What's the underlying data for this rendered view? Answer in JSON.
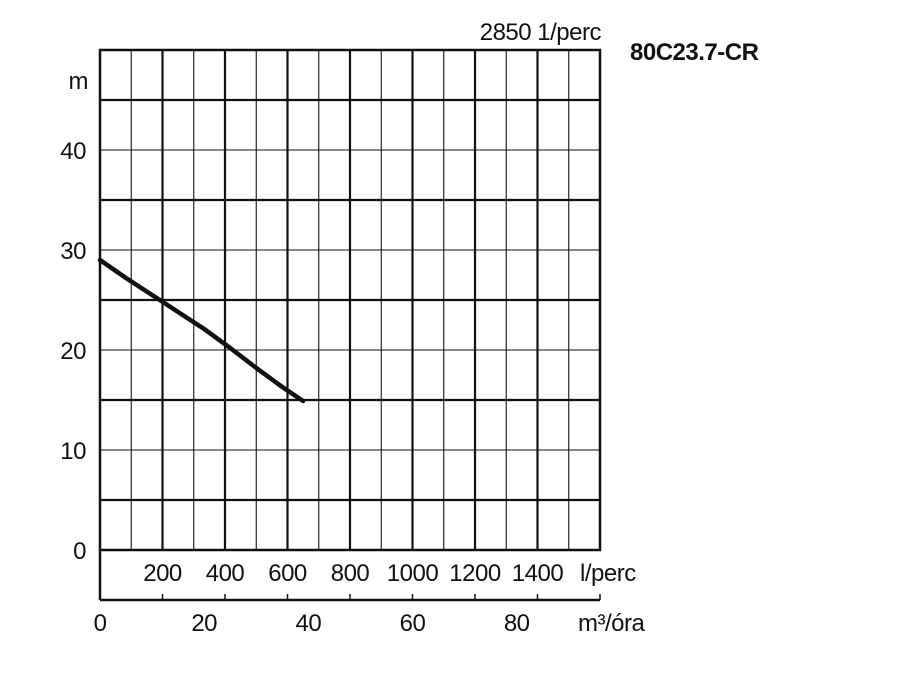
{
  "chart_data": {
    "type": "line",
    "title": "80C23.7-CR",
    "speed_label": "2850 1/perc",
    "ylabel": "m",
    "ylim": [
      0,
      50
    ],
    "y_ticks": [
      "0",
      "10",
      "20",
      "30",
      "40"
    ],
    "x_primary_unit": "m³/óra",
    "x_primary_ticks": [
      "0",
      "20",
      "40",
      "60",
      "80"
    ],
    "xlim": [
      0,
      96
    ],
    "x_secondary_unit": "l/perc",
    "x_secondary_ticks": [
      "200",
      "400",
      "600",
      "800",
      "1000",
      "1200",
      "1400"
    ],
    "grid": true,
    "series": [
      {
        "x": [
          0,
          5,
          10,
          15,
          20,
          25,
          30,
          35,
          39
        ],
        "values": [
          29,
          27.2,
          25.5,
          23.8,
          22.1,
          20.2,
          18.2,
          16.3,
          14.9
        ]
      }
    ]
  },
  "colors": {
    "line": "#111111",
    "grid": "#111111",
    "background": "#ffffff"
  }
}
